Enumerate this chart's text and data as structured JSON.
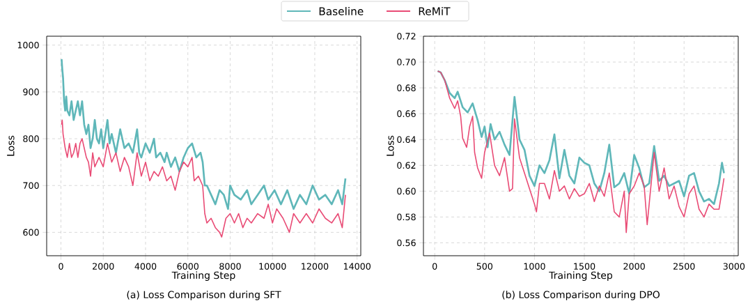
{
  "chart_data": [
    {
      "type": "line",
      "title": "(a) Loss Comparison during SFT",
      "xlabel": "Training Step",
      "ylabel": "Loss",
      "xlim": [
        -675,
        14175
      ],
      "ylim": [
        550,
        1019
      ],
      "xticks": [
        0,
        2000,
        4000,
        6000,
        8000,
        10000,
        12000,
        14000
      ],
      "yticks": [
        600,
        700,
        800,
        900,
        1000
      ],
      "grid": true,
      "legend": "top",
      "line_style": "solid",
      "marker": "none",
      "series": [
        {
          "name": "Baseline",
          "color": "#5fb7b9",
          "x": [
            30,
            60,
            100,
            150,
            200,
            250,
            300,
            400,
            500,
            600,
            700,
            800,
            900,
            1000,
            1100,
            1200,
            1300,
            1400,
            1500,
            1600,
            1700,
            1800,
            1900,
            2000,
            2200,
            2300,
            2400,
            2600,
            2800,
            3000,
            3200,
            3400,
            3600,
            3700,
            3800,
            4000,
            4200,
            4400,
            4500,
            4700,
            4900,
            5000,
            5200,
            5400,
            5600,
            5800,
            6000,
            6200,
            6400,
            6600,
            6700,
            6800,
            6900,
            7100,
            7300,
            7500,
            7700,
            7900,
            8000,
            8200,
            8500,
            8800,
            9000,
            9300,
            9600,
            9800,
            10100,
            10400,
            10700,
            11000,
            11300,
            11600,
            11900,
            12200,
            12500,
            12800,
            13100,
            13300,
            13450
          ],
          "values": [
            970,
            950,
            930,
            880,
            860,
            890,
            860,
            850,
            880,
            840,
            860,
            880,
            850,
            880,
            830,
            810,
            830,
            780,
            800,
            840,
            800,
            790,
            820,
            780,
            840,
            790,
            810,
            770,
            820,
            780,
            790,
            770,
            820,
            770,
            760,
            790,
            770,
            800,
            760,
            770,
            750,
            770,
            740,
            760,
            730,
            760,
            780,
            790,
            760,
            770,
            750,
            700,
            700,
            680,
            660,
            690,
            680,
            650,
            700,
            680,
            670,
            690,
            660,
            680,
            700,
            670,
            690,
            660,
            690,
            650,
            680,
            660,
            700,
            670,
            680,
            660,
            690,
            660,
            715
          ]
        },
        {
          "name": "ReMiT",
          "color": "#e94b75",
          "x": [
            30,
            60,
            100,
            200,
            300,
            400,
            500,
            600,
            700,
            800,
            900,
            1000,
            1100,
            1200,
            1300,
            1400,
            1500,
            1600,
            1800,
            2000,
            2200,
            2400,
            2600,
            2800,
            3000,
            3200,
            3400,
            3600,
            3800,
            4000,
            4200,
            4400,
            4600,
            4800,
            5000,
            5200,
            5400,
            5600,
            5800,
            6000,
            6200,
            6300,
            6500,
            6700,
            6800,
            6900,
            7100,
            7300,
            7500,
            7600,
            7800,
            8000,
            8200,
            8400,
            8600,
            8800,
            9000,
            9300,
            9600,
            9800,
            10000,
            10200,
            10500,
            10800,
            11000,
            11300,
            11600,
            11900,
            12200,
            12500,
            12800,
            13100,
            13300,
            13450
          ],
          "values": [
            830,
            840,
            810,
            780,
            760,
            790,
            760,
            770,
            790,
            760,
            790,
            800,
            780,
            760,
            750,
            720,
            770,
            740,
            760,
            740,
            790,
            750,
            770,
            730,
            760,
            740,
            700,
            770,
            720,
            750,
            710,
            730,
            720,
            740,
            710,
            720,
            690,
            730,
            750,
            740,
            760,
            710,
            720,
            700,
            640,
            620,
            630,
            610,
            600,
            590,
            630,
            640,
            620,
            640,
            610,
            630,
            620,
            640,
            630,
            660,
            620,
            650,
            630,
            600,
            640,
            620,
            640,
            620,
            650,
            630,
            620,
            640,
            610,
            680
          ]
        }
      ]
    },
    {
      "type": "line",
      "title": "(b) Loss Comparison during DPO",
      "xlabel": "Training Step",
      "ylabel": "Loss",
      "xlim": [
        -113,
        3043
      ],
      "ylim": [
        0.55,
        0.72
      ],
      "xticks": [
        0,
        500,
        1000,
        1500,
        2000,
        2500,
        3000
      ],
      "yticks": [
        {
          "value": 0.56,
          "label": "0.56"
        },
        {
          "value": 0.58,
          "label": "0.58"
        },
        {
          "value": 0.6,
          "label": "0.60"
        },
        {
          "value": 0.62,
          "label": "0.62"
        },
        {
          "value": 0.64,
          "label": "0.64"
        },
        {
          "value": 0.66,
          "label": "0.66"
        },
        {
          "value": 0.68,
          "label": "0.68"
        },
        {
          "value": 0.7,
          "label": "0.70"
        },
        {
          "value": 0.72,
          "label": "0.72"
        }
      ],
      "grid": true,
      "line_style": "solid",
      "marker": "none",
      "series": [
        {
          "color": "#5fb7b9",
          "x": [
            30,
            60,
            100,
            150,
            200,
            230,
            280,
            330,
            380,
            430,
            470,
            500,
            530,
            560,
            600,
            650,
            700,
            750,
            800,
            850,
            900,
            950,
            1000,
            1050,
            1100,
            1150,
            1200,
            1250,
            1300,
            1350,
            1400,
            1450,
            1500,
            1550,
            1600,
            1650,
            1700,
            1750,
            1800,
            1850,
            1900,
            1950,
            2000,
            2050,
            2100,
            2150,
            2200,
            2250,
            2300,
            2350,
            2400,
            2450,
            2500,
            2550,
            2600,
            2650,
            2700,
            2750,
            2800,
            2850,
            2880,
            2900
          ],
          "values": [
            0.693,
            0.692,
            0.686,
            0.676,
            0.672,
            0.677,
            0.665,
            0.661,
            0.668,
            0.655,
            0.642,
            0.65,
            0.634,
            0.652,
            0.64,
            0.646,
            0.636,
            0.628,
            0.673,
            0.64,
            0.632,
            0.612,
            0.604,
            0.62,
            0.614,
            0.624,
            0.644,
            0.61,
            0.632,
            0.612,
            0.606,
            0.626,
            0.622,
            0.62,
            0.606,
            0.6,
            0.614,
            0.636,
            0.603,
            0.606,
            0.614,
            0.598,
            0.628,
            0.618,
            0.603,
            0.606,
            0.635,
            0.608,
            0.612,
            0.604,
            0.606,
            0.608,
            0.596,
            0.612,
            0.614,
            0.6,
            0.592,
            0.594,
            0.59,
            0.606,
            0.622,
            0.614
          ]
        },
        {
          "color": "#e94b75",
          "x": [
            30,
            60,
            100,
            150,
            200,
            230,
            260,
            280,
            320,
            350,
            380,
            400,
            430,
            470,
            500,
            550,
            600,
            650,
            700,
            750,
            780,
            800,
            850,
            900,
            950,
            1000,
            1020,
            1050,
            1100,
            1150,
            1200,
            1250,
            1300,
            1350,
            1400,
            1450,
            1500,
            1550,
            1600,
            1650,
            1700,
            1750,
            1800,
            1850,
            1900,
            1920,
            1950,
            2000,
            2050,
            2100,
            2130,
            2200,
            2250,
            2300,
            2350,
            2400,
            2450,
            2500,
            2550,
            2600,
            2650,
            2700,
            2750,
            2800,
            2850,
            2880,
            2900
          ],
          "values": [
            0.693,
            0.692,
            0.686,
            0.672,
            0.664,
            0.67,
            0.658,
            0.641,
            0.634,
            0.65,
            0.658,
            0.63,
            0.618,
            0.61,
            0.63,
            0.645,
            0.62,
            0.612,
            0.626,
            0.6,
            0.602,
            0.656,
            0.626,
            0.614,
            0.602,
            0.59,
            0.584,
            0.606,
            0.606,
            0.594,
            0.616,
            0.6,
            0.604,
            0.594,
            0.602,
            0.596,
            0.598,
            0.606,
            0.592,
            0.604,
            0.596,
            0.614,
            0.584,
            0.58,
            0.6,
            0.568,
            0.598,
            0.604,
            0.614,
            0.604,
            0.574,
            0.63,
            0.6,
            0.618,
            0.594,
            0.604,
            0.588,
            0.58,
            0.598,
            0.604,
            0.586,
            0.58,
            0.59,
            0.586,
            0.586,
            0.6,
            0.61
          ]
        }
      ]
    }
  ]
}
